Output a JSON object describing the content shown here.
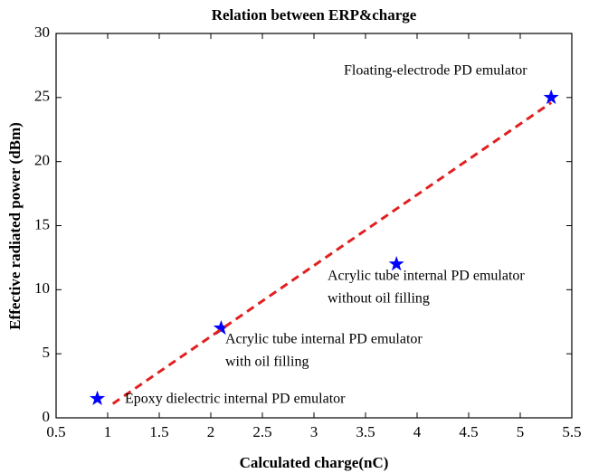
{
  "chart_data": {
    "type": "scatter",
    "title": "Relation between ERP&charge",
    "xlabel": "Calculated charge(nC)",
    "ylabel": "Effective radiated power (dBm)",
    "xlim": [
      0.5,
      5.5
    ],
    "xticks": [
      0.5,
      1,
      1.5,
      2,
      2.5,
      3,
      3.5,
      4,
      4.5,
      5,
      5.5
    ],
    "ylim": [
      0,
      30
    ],
    "yticks": [
      0,
      5,
      10,
      15,
      20,
      25,
      30
    ],
    "series": [
      {
        "color": "#0000ff",
        "marker": "star",
        "x": [
          0.9,
          2.1,
          3.8,
          5.3
        ],
        "values": [
          1.5,
          7,
          12,
          25
        ]
      },
      {
        "color": "#e02020",
        "dash": true,
        "x": [
          1.05,
          5.3
        ],
        "values": [
          1.1,
          24.6
        ]
      }
    ],
    "annotations": [
      [
        "Epoxy dielectric internal PD emulator"
      ],
      [
        "Acrylic tube internal PD emulator",
        "with oil filling"
      ],
      [
        "Acrylic tube internal PD emulator",
        "without oil filling"
      ],
      [
        "Floating-electrode PD emulator"
      ]
    ]
  }
}
